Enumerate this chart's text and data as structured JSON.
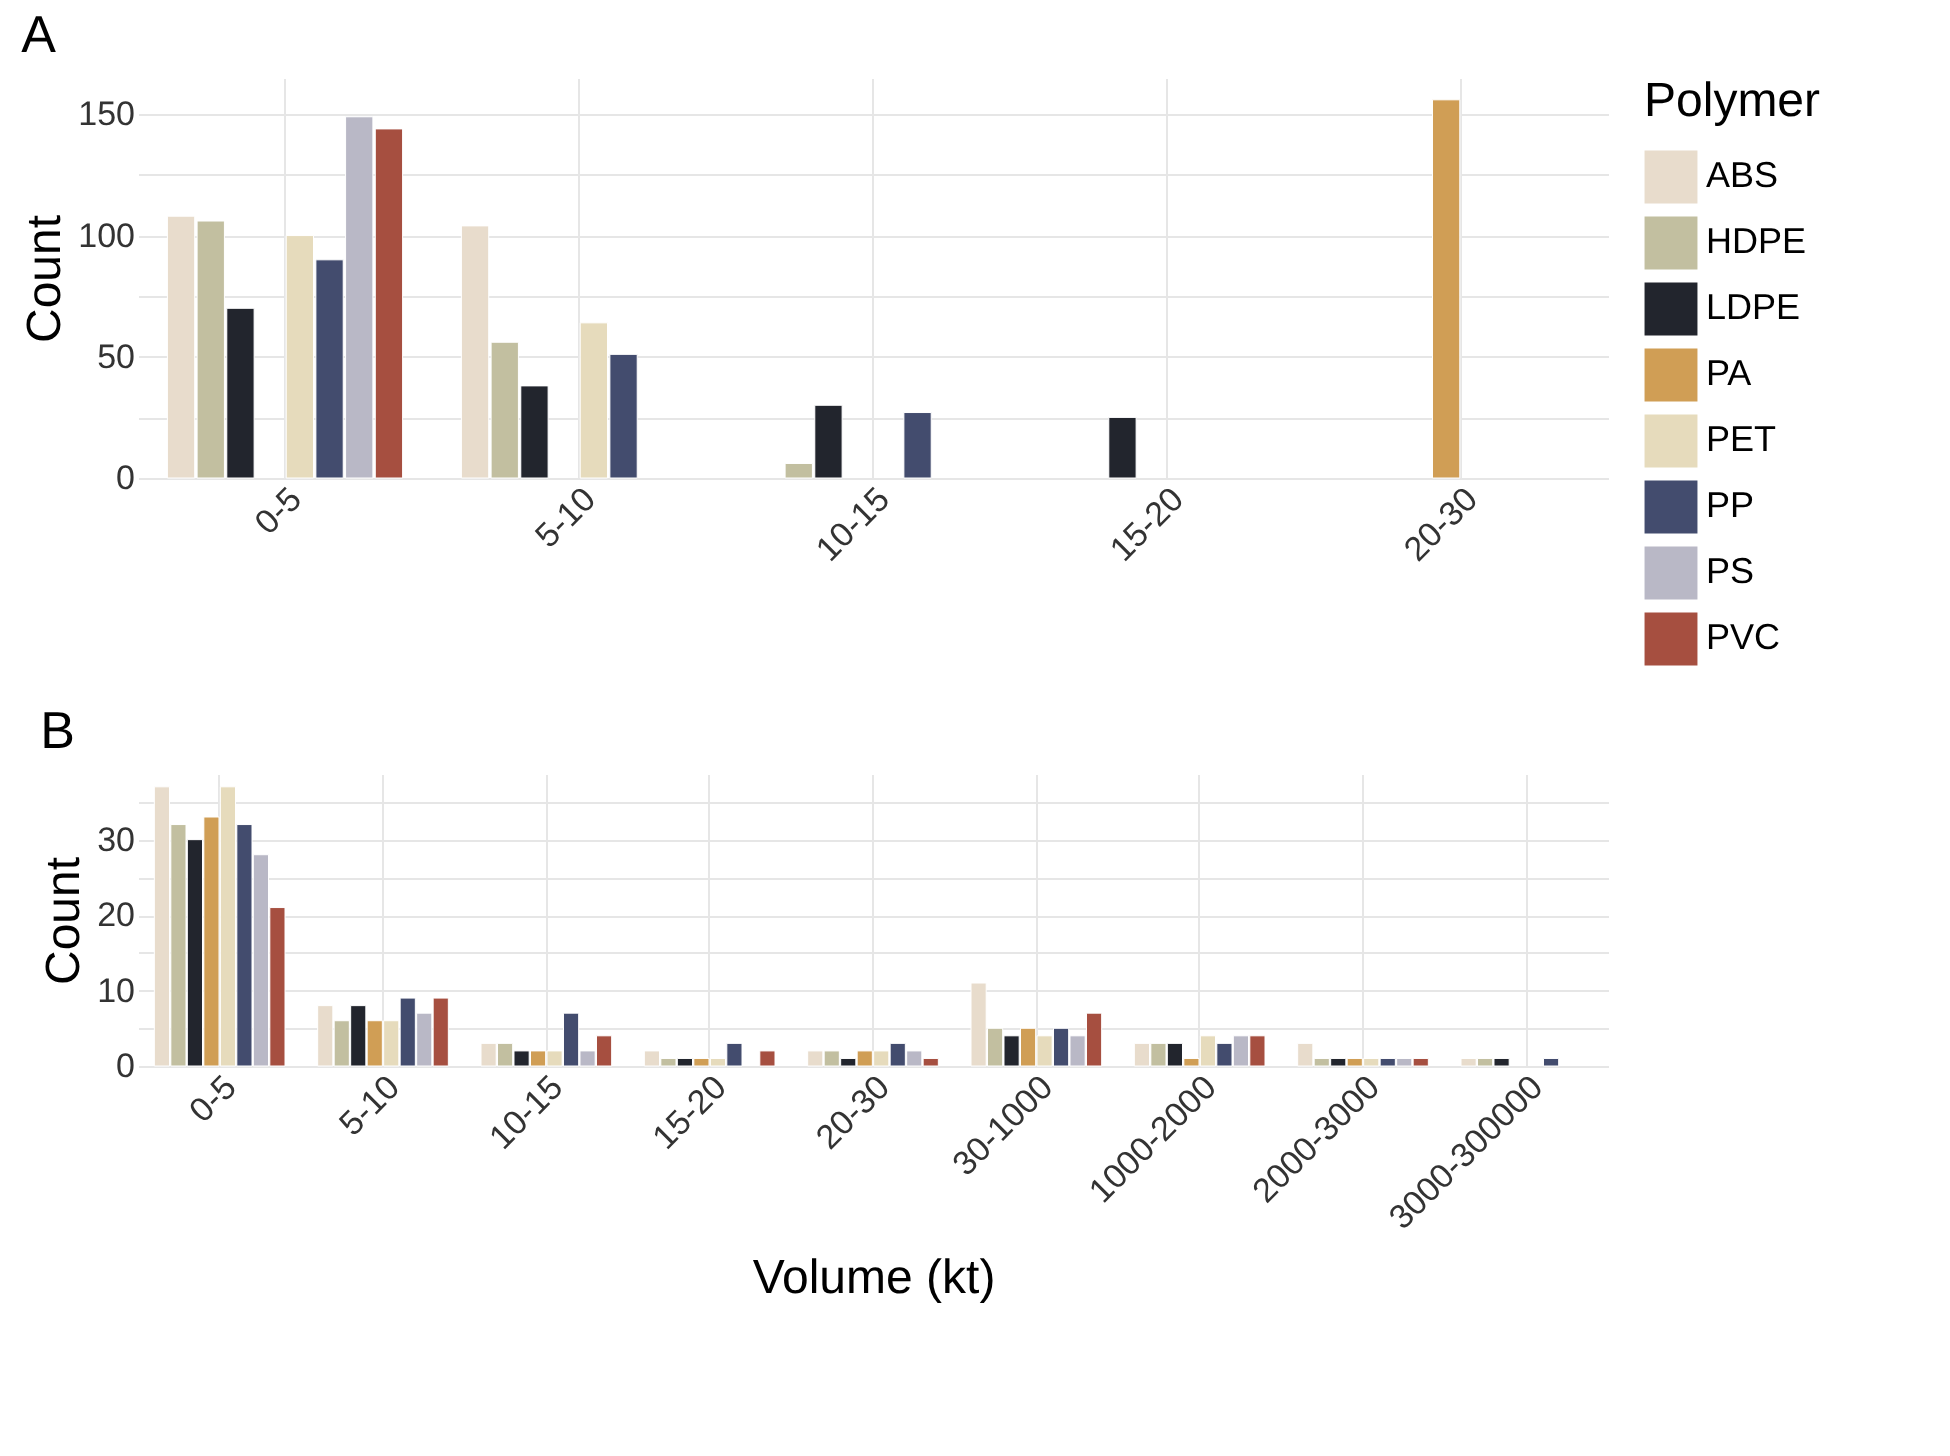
{
  "chart_data": [
    {
      "type": "bar",
      "title": "A",
      "ylabel": "Count",
      "legend_title": "Polymer",
      "legend": "right",
      "grid": true,
      "categories": [
        "0-5",
        "5-10",
        "10-15",
        "15-20",
        "20-30"
      ],
      "ylim": [
        0,
        165
      ],
      "yticks": [
        0,
        {
          "value": 25,
          "label": null
        },
        50,
        {
          "value": 75,
          "label": null
        },
        100,
        {
          "value": 125,
          "label": null
        },
        150
      ],
      "series": [
        {
          "name": "ABS",
          "color": "#e8dccc",
          "values": [
            108,
            104,
            null,
            null,
            null
          ]
        },
        {
          "name": "HDPE",
          "color": "#c2bfa0",
          "values": [
            106,
            56,
            6,
            null,
            null
          ]
        },
        {
          "name": "LDPE",
          "color": "#22252d",
          "values": [
            70,
            38,
            30,
            25,
            null
          ]
        },
        {
          "name": "PA",
          "color": "#d09e55",
          "values": [
            null,
            null,
            null,
            null,
            156
          ]
        },
        {
          "name": "PET",
          "color": "#e6dbbc",
          "values": [
            100,
            64,
            null,
            null,
            null
          ]
        },
        {
          "name": "PP",
          "color": "#434c6e",
          "values": [
            90,
            51,
            27,
            null,
            null
          ]
        },
        {
          "name": "PS",
          "color": "#b9b8c6",
          "values": [
            149,
            null,
            null,
            null,
            null
          ]
        },
        {
          "name": "PVC",
          "color": "#a64f40",
          "values": [
            144,
            null,
            null,
            null,
            null
          ]
        }
      ]
    },
    {
      "type": "bar",
      "title": "B",
      "ylabel": "Count",
      "xlabel": "Volume (kt)",
      "grid": true,
      "categories": [
        "0-5",
        "5-10",
        "10-15",
        "15-20",
        "20-30",
        "30-1000",
        "1000-2000",
        "2000-3000",
        "3000-300000"
      ],
      "ylim": [
        0,
        38.7
      ],
      "yticks": [
        0,
        {
          "value": 5,
          "label": null
        },
        10,
        {
          "value": 15,
          "label": null
        },
        20,
        {
          "value": 25,
          "label": null
        },
        30,
        {
          "value": 35,
          "label": null
        }
      ],
      "series": [
        {
          "color": "#e8dccc",
          "values": [
            37,
            8,
            3,
            2,
            2,
            11,
            3,
            3,
            1
          ]
        },
        {
          "color": "#c2bfa0",
          "values": [
            32,
            6,
            3,
            1,
            2,
            5,
            3,
            1,
            1
          ]
        },
        {
          "color": "#22252d",
          "values": [
            30,
            8,
            2,
            1,
            1,
            4,
            3,
            1,
            1
          ]
        },
        {
          "color": "#d09e55",
          "values": [
            33,
            6,
            2,
            1,
            2,
            5,
            1,
            1,
            null
          ]
        },
        {
          "color": "#e6dbbc",
          "values": [
            37,
            6,
            2,
            1,
            2,
            4,
            4,
            1,
            null
          ]
        },
        {
          "color": "#434c6e",
          "values": [
            32,
            9,
            7,
            3,
            3,
            5,
            3,
            1,
            1
          ]
        },
        {
          "color": "#b9b8c6",
          "values": [
            28,
            7,
            2,
            null,
            2,
            4,
            4,
            1,
            null
          ]
        },
        {
          "color": "#a64f40",
          "values": [
            21,
            9,
            4,
            2,
            1,
            7,
            4,
            1,
            null
          ]
        }
      ]
    }
  ]
}
